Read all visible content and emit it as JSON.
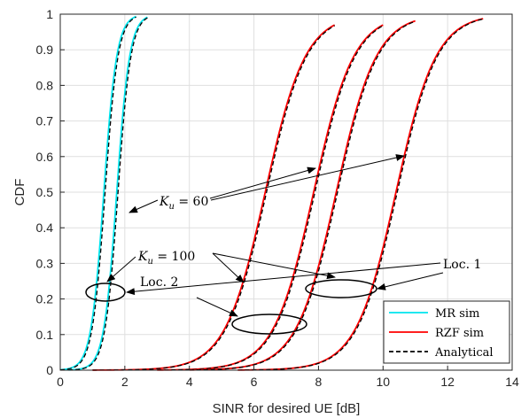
{
  "chart_data": {
    "type": "line",
    "xlabel": "SINR for desired UE [dB]",
    "ylabel": "CDF",
    "xlim": [
      0,
      14
    ],
    "ylim": [
      0,
      1
    ],
    "xticks": [
      "0",
      "2",
      "4",
      "6",
      "8",
      "10",
      "12",
      "14"
    ],
    "yticks": [
      "0",
      "0.1",
      "0.2",
      "0.3",
      "0.4",
      "0.5",
      "0.6",
      "0.7",
      "0.8",
      "0.9",
      "1"
    ],
    "grid": true,
    "legend_position": "bottom-right",
    "legend": [
      {
        "label": "MR sim",
        "color": "#00e5ee",
        "style": "solid"
      },
      {
        "label": "RZF sim",
        "color": "#ff0000",
        "style": "solid"
      },
      {
        "label": "Analytical",
        "color": "#000000",
        "style": "dashed"
      }
    ],
    "curves": [
      {
        "scheme": "MR",
        "color": "#00e5ee",
        "median": 1.35,
        "spread": 0.2,
        "min": 0.0,
        "max": 2.35
      },
      {
        "scheme": "MR",
        "color": "#00e5ee",
        "median": 1.75,
        "spread": 0.2,
        "min": 0.25,
        "max": 2.7
      },
      {
        "scheme": "RZF",
        "color": "#ff0000",
        "median": 6.35,
        "spread": 0.62,
        "min": 1.0,
        "max": 8.5
      },
      {
        "scheme": "RZF",
        "color": "#ff0000",
        "median": 7.85,
        "spread": 0.62,
        "min": 3.0,
        "max": 10.0
      },
      {
        "scheme": "RZF",
        "color": "#ff0000",
        "median": 8.55,
        "spread": 0.62,
        "min": 4.0,
        "max": 11.0
      },
      {
        "scheme": "RZF",
        "color": "#ff0000",
        "median": 10.4,
        "spread": 0.62,
        "min": 5.5,
        "max": 13.1
      }
    ],
    "annotations": {
      "ku60": {
        "label_math": "K",
        "label_sub": "u",
        "label_rest": " = 60"
      },
      "ku100": {
        "label_math": "K",
        "label_sub": "u",
        "label_rest": " = 100"
      },
      "loc2": "Loc. 2",
      "loc1": "Loc. 1"
    }
  }
}
